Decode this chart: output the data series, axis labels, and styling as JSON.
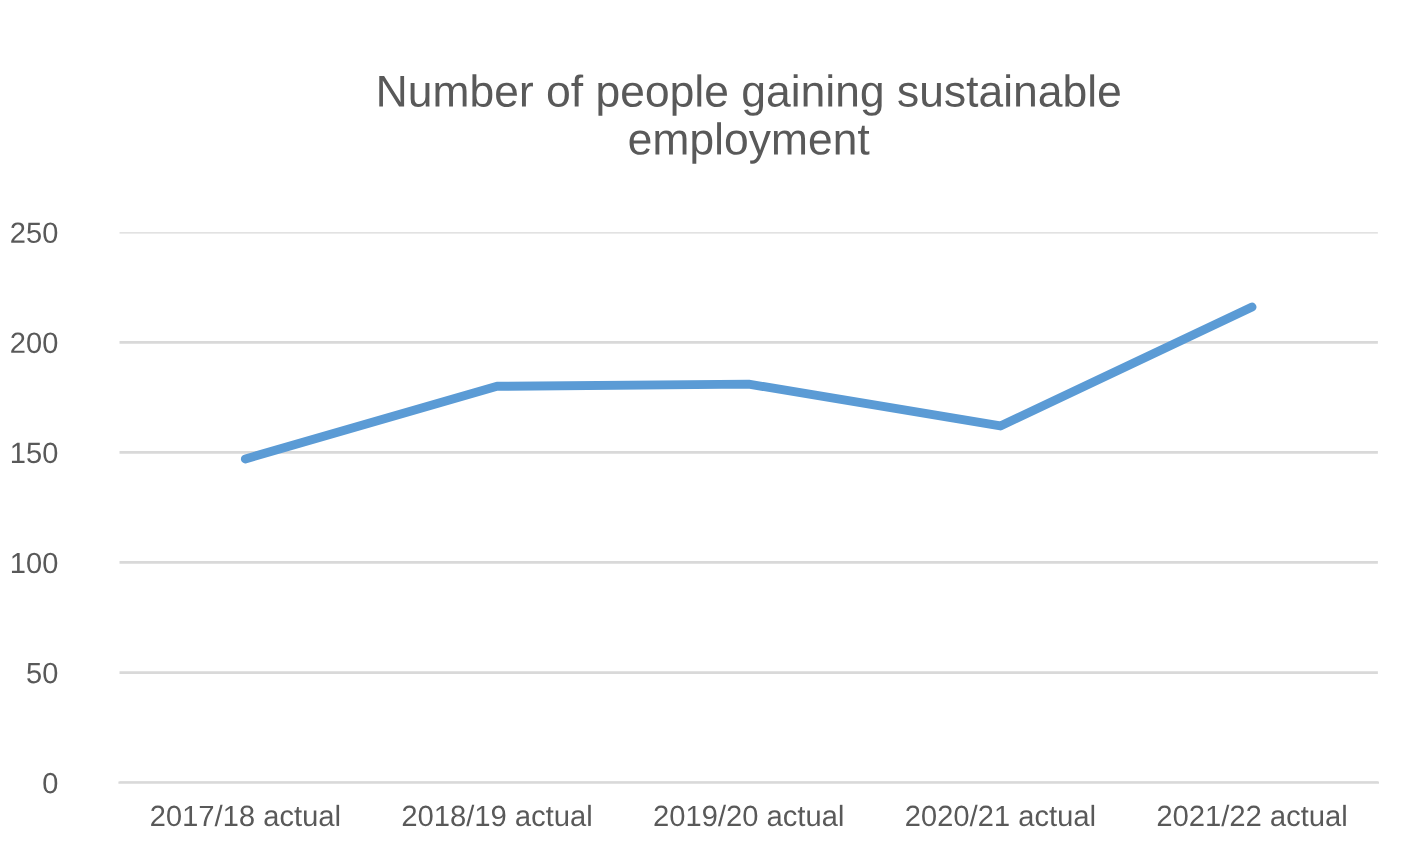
{
  "chart_data": {
    "type": "line",
    "title": "Number of people gaining sustainable\nemployment",
    "categories": [
      "2017/18 actual",
      "2018/19 actual",
      "2019/20 actual",
      "2020/21 actual",
      "2021/22 actual"
    ],
    "series": [
      {
        "color": "#5b9bd5",
        "values": [
          147,
          180,
          181,
          162,
          216
        ]
      }
    ],
    "ylim": [
      0,
      250
    ],
    "yticks": [
      0,
      50,
      100,
      150,
      200,
      250
    ],
    "grid": "y",
    "marker": "none",
    "line_style": "solid"
  }
}
